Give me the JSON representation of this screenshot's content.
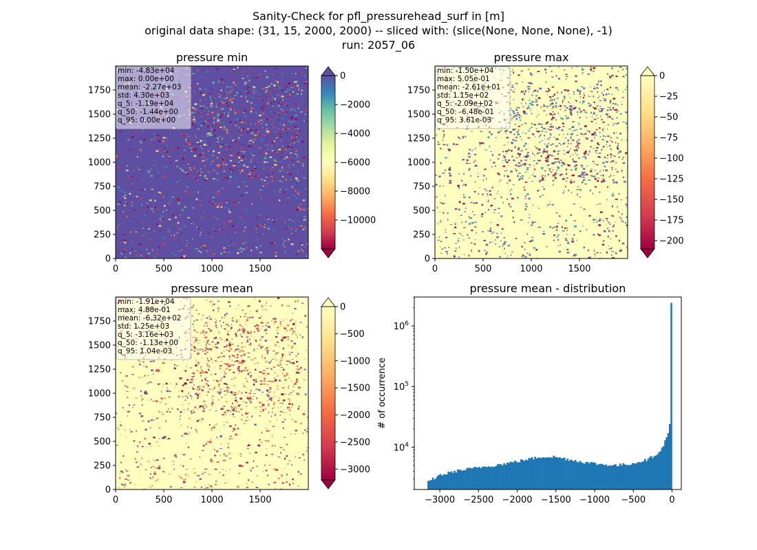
{
  "figure": {
    "title_lines": [
      "Sanity-Check for pfl_pressurehead_surf in [m]",
      "original data shape: (31, 15, 2000, 2000) -- sliced with: (slice(None, None, None), -1)",
      "run: 2057_06"
    ]
  },
  "chart_data": [
    {
      "type": "heatmap",
      "title": "pressure min",
      "colormap": "Spectral",
      "colormap_stops": [
        "#9e0142",
        "#d53e4f",
        "#f46d43",
        "#fdae61",
        "#fee08b",
        "#ffffbf",
        "#e6f598",
        "#abdda4",
        "#66c2a5",
        "#3288bd",
        "#5e4fa2"
      ],
      "xlim": [
        0,
        2000
      ],
      "ylim": [
        0,
        2000
      ],
      "xticks": [
        "0",
        "500",
        "1000",
        "1500"
      ],
      "yticks": [
        "0",
        "250",
        "500",
        "750",
        "1000",
        "1250",
        "1500",
        "1750"
      ],
      "colorbar": {
        "min": -12000,
        "max": 0,
        "ticks": [
          "0",
          "−2000",
          "−4000",
          "−6000",
          "−8000",
          "−10000"
        ],
        "tick_values": [
          0,
          -2000,
          -4000,
          -6000,
          -8000,
          -10000
        ],
        "extend": "both"
      },
      "stats": [
        "min: -4.83e+04",
        "max: 0.00e+00",
        "mean: -2.27e+03",
        "std: 4.30e+03",
        "q_5: -1.19e+04",
        "q_50: -1.44e+00",
        "q_95: 0.00e+00"
      ],
      "dominant_color": "#5e4fa2",
      "speckle_colors": [
        "#9e0142",
        "#d53e4f",
        "#f46d43",
        "#fee08b",
        "#66c2a5",
        "#3288bd"
      ]
    },
    {
      "type": "heatmap",
      "title": "pressure max",
      "colormap": "Spectral",
      "colormap_stops": [
        "#9e0142",
        "#d53e4f",
        "#f46d43",
        "#fdae61",
        "#fee08b",
        "#ffffbf"
      ],
      "xlim": [
        0,
        2000
      ],
      "ylim": [
        0,
        2000
      ],
      "xticks": [
        "0",
        "500",
        "1000",
        "1500"
      ],
      "yticks": [
        "0",
        "250",
        "500",
        "750",
        "1000",
        "1250",
        "1500",
        "1750"
      ],
      "colorbar": {
        "min": -210,
        "max": 0,
        "ticks": [
          "0",
          "−25",
          "−50",
          "−75",
          "−100",
          "−125",
          "−150",
          "−175",
          "−200"
        ],
        "tick_values": [
          0,
          -25,
          -50,
          -75,
          -100,
          -125,
          -150,
          -175,
          -200
        ],
        "extend": "both"
      },
      "stats": [
        "min: -1.50e+04",
        "max: 5.05e-01",
        "mean: -2.61e+01",
        "std: 1.15e+02",
        "q_5: -2.09e+02",
        "q_50: -6.48e-01",
        "q_95: 3.61e-03"
      ],
      "dominant_color": "#ffffbf",
      "speckle_colors": [
        "#9e0142",
        "#5e4fa2",
        "#3288bd"
      ]
    },
    {
      "type": "heatmap",
      "title": "pressure mean",
      "colormap": "Spectral",
      "colormap_stops": [
        "#9e0142",
        "#d53e4f",
        "#f46d43",
        "#fdae61",
        "#fee08b",
        "#ffffbf"
      ],
      "xlim": [
        0,
        2000
      ],
      "ylim": [
        0,
        2000
      ],
      "xticks": [
        "0",
        "500",
        "1000",
        "1500"
      ],
      "yticks": [
        "0",
        "250",
        "500",
        "750",
        "1000",
        "1250",
        "1500",
        "1750"
      ],
      "colorbar": {
        "min": -3200,
        "max": 0,
        "ticks": [
          "0",
          "−500",
          "−1000",
          "−1500",
          "−2000",
          "−2500",
          "−3000"
        ],
        "tick_values": [
          0,
          -500,
          -1000,
          -1500,
          -2000,
          -2500,
          -3000
        ],
        "extend": "both"
      },
      "stats": [
        "min: -1.91e+04",
        "max: 4.88e-01",
        "mean: -6.32e+02",
        "std: 1.25e+03",
        "q_5: -3.16e+03",
        "q_50: -1.13e+00",
        "q_95: 1.04e-03"
      ],
      "dominant_color": "#ffffbf",
      "speckle_colors": [
        "#9e0142",
        "#d53e4f",
        "#f46d43",
        "#fdae61",
        "#5e4fa2"
      ]
    },
    {
      "type": "bar",
      "title": "pressure mean - distribution",
      "ylabel": "# of occurrence",
      "xlabel": "",
      "y_scale": "log",
      "xlim": [
        -3330,
        120
      ],
      "ylim": [
        2000,
        3000000
      ],
      "xticks": [
        "−3000",
        "−2500",
        "−2000",
        "−1500",
        "−1000",
        "−500",
        "0"
      ],
      "xtick_values": [
        -3000,
        -2500,
        -2000,
        -1500,
        -1000,
        -500,
        0
      ],
      "ytick_values": [
        10000,
        100000,
        1000000
      ],
      "color": "#1f77b4",
      "bin_width": 20,
      "bins_start": -3160,
      "bins_end": 0,
      "envelope": [
        [
          -3160,
          2600
        ],
        [
          -3000,
          3400
        ],
        [
          -2800,
          4000
        ],
        [
          -2500,
          4600
        ],
        [
          -2200,
          5200
        ],
        [
          -2000,
          5800
        ],
        [
          -1800,
          6500
        ],
        [
          -1650,
          7000
        ],
        [
          -1500,
          6900
        ],
        [
          -1300,
          6200
        ],
        [
          -1100,
          5600
        ],
        [
          -900,
          5200
        ],
        [
          -700,
          5000
        ],
        [
          -500,
          5400
        ],
        [
          -300,
          6300
        ],
        [
          -200,
          7500
        ],
        [
          -120,
          9500
        ],
        [
          -80,
          12500
        ],
        [
          -40,
          17000
        ],
        [
          -20,
          24000
        ],
        [
          0,
          2400000
        ]
      ]
    }
  ]
}
